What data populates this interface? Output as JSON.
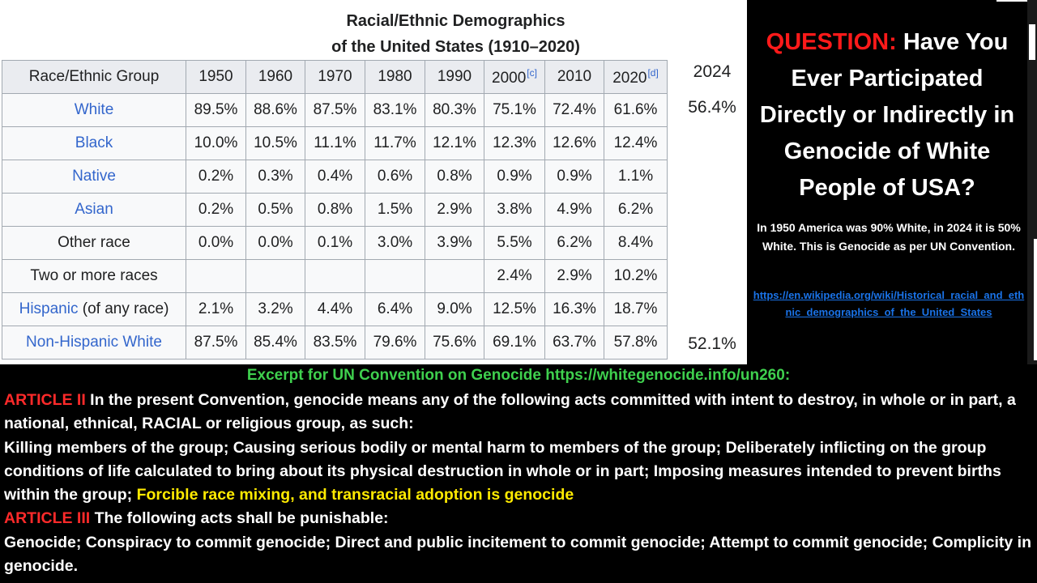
{
  "table": {
    "title_line1": "Racial/Ethnic Demographics",
    "title_line2": "of the United States (1910–2020)",
    "header": {
      "group": "Race/Ethnic Group",
      "years": [
        {
          "label": "1950",
          "note": ""
        },
        {
          "label": "1960",
          "note": ""
        },
        {
          "label": "1970",
          "note": ""
        },
        {
          "label": "1980",
          "note": ""
        },
        {
          "label": "1990",
          "note": ""
        },
        {
          "label": "2000",
          "note": "[c]"
        },
        {
          "label": "2010",
          "note": ""
        },
        {
          "label": "2020",
          "note": "[d]"
        }
      ]
    },
    "rows": [
      {
        "label": "White",
        "suffix": "",
        "values": [
          "89.5%",
          "88.6%",
          "87.5%",
          "83.1%",
          "80.3%",
          "75.1%",
          "72.4%",
          "61.6%"
        ]
      },
      {
        "label": "Black",
        "suffix": "",
        "values": [
          "10.0%",
          "10.5%",
          "11.1%",
          "11.7%",
          "12.1%",
          "12.3%",
          "12.6%",
          "12.4%"
        ]
      },
      {
        "label": "Native",
        "suffix": "",
        "values": [
          "0.2%",
          "0.3%",
          "0.4%",
          "0.6%",
          "0.8%",
          "0.9%",
          "0.9%",
          "1.1%"
        ]
      },
      {
        "label": "Asian",
        "suffix": "",
        "values": [
          "0.2%",
          "0.5%",
          "0.8%",
          "1.5%",
          "2.9%",
          "3.8%",
          "4.9%",
          "6.2%"
        ]
      },
      {
        "label": "Other race",
        "suffix": "",
        "values": [
          "0.0%",
          "0.0%",
          "0.1%",
          "3.0%",
          "3.9%",
          "5.5%",
          "6.2%",
          "8.4%"
        ]
      },
      {
        "label": "Two or more races",
        "suffix": "",
        "values": [
          "",
          "",
          "",
          "",
          "",
          "2.4%",
          "2.9%",
          "10.2%"
        ]
      },
      {
        "label": "Hispanic",
        "suffix": " (of any race)",
        "values": [
          "2.1%",
          "3.2%",
          "4.4%",
          "6.4%",
          "9.0%",
          "12.5%",
          "16.3%",
          "18.7%"
        ]
      },
      {
        "label": "Non-Hispanic White",
        "suffix": "",
        "values": [
          "87.5%",
          "85.4%",
          "83.5%",
          "79.6%",
          "75.6%",
          "69.1%",
          "63.7%",
          "57.8%"
        ]
      }
    ],
    "extra_2024": {
      "header": "2024",
      "white": "56.4%",
      "non_hispanic_white": "52.1%"
    }
  },
  "question": {
    "prefix": "QUESTION:",
    "text": " Have You Ever Participated Directly or Indirectly in Genocide of White People of USA?"
  },
  "claim": "In 1950 America was 90% White, in 2024 it is 50% White. This is Genocide as per UN Convention.",
  "url": "https://en.wikipedia.org/wiki/Historical_racial_and_ethnic_demographics_of_the_United_States",
  "excerpt": {
    "title": "Excerpt for UN Convention on Genocide https://whitegenocide.info/un260:",
    "article2_label": "ARTICLE II",
    "article2_text": " In the present Convention, genocide means any of the following acts committed with intent to destroy, in whole or in part, a national, ethnical, RACIAL or religious group, as such:",
    "acts_text": "Killing members of the group; Causing serious bodily or mental harm to members of the group; Deliberately inflicting on the group conditions of life calculated to bring about its physical destruction in whole or in part; Imposing measures intended to prevent births within the group; ",
    "acts_highlight": "Forcible race mixing, and transracial adoption is genocide",
    "article3_label": "ARTICLE III",
    "article3_text": " The following acts shall be punishable:",
    "punishable_text": "Genocide; Conspiracy to commit genocide; Direct and public incitement to commit genocide; Attempt to commit genocide; Complicity in genocide."
  },
  "colors": {
    "link_blue": "#3366cc",
    "red": "#ff1a1a",
    "green": "#3fd04e",
    "yellow": "#ffea00"
  }
}
